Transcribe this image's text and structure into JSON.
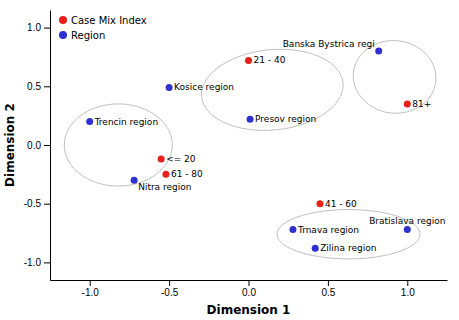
{
  "chart_data": {
    "type": "scatter",
    "xlabel": "Dimension 1",
    "ylabel": "Dimension 2",
    "xlim": [
      -1.25,
      1.25
    ],
    "ylim": [
      -1.15,
      1.15
    ],
    "xticks": [
      {
        "value": -1.0,
        "label": "-1.0"
      },
      -0.5,
      {
        "value": 0.0,
        "label": "0.0"
      },
      0.5,
      {
        "value": 1.0,
        "label": "1.0"
      }
    ],
    "yticks": [
      {
        "value": -1.0,
        "label": "-1.0"
      },
      -0.5,
      {
        "value": 0.0,
        "label": "0.0"
      },
      0.5,
      {
        "value": 1.0,
        "label": "1.0"
      }
    ],
    "grid": false,
    "legend": "upper left",
    "series": [
      {
        "name": "Case Mix Index",
        "color": "#e8201a",
        "marker": "circle",
        "x": [
          0.0,
          1.0,
          -0.55,
          -0.52,
          0.45
        ],
        "values": [
          0.72,
          0.35,
          -0.12,
          -0.25,
          -0.5
        ],
        "point_labels": [
          "21 - 40",
          "81+",
          "<= 20",
          "61 - 80",
          "41 - 60"
        ]
      },
      {
        "name": "Region",
        "color": "#3030d0",
        "marker": "circle",
        "x": [
          -0.5,
          0.01,
          0.82,
          -1.0,
          -0.72,
          0.28,
          1.0,
          0.42
        ],
        "values": [
          0.49,
          0.22,
          0.8,
          0.2,
          -0.3,
          -0.72,
          -0.72,
          -0.88
        ],
        "point_labels": [
          "Kosice region",
          "Presov region",
          "Banska Bystrica regi",
          "Trencin region",
          "Nitra region",
          "Trnava region",
          "Bratislava region",
          "Zilina region"
        ]
      }
    ],
    "ellipses": [
      {
        "cx": 0.15,
        "cy": 0.47,
        "width": 0.9,
        "height": 0.68,
        "angle": 12,
        "color": "#c0c0c0"
      },
      {
        "cx": 0.92,
        "cy": 0.58,
        "width": 0.52,
        "height": 0.62,
        "angle": 5,
        "color": "#c0c0c0"
      },
      {
        "cx": -0.82,
        "cy": 0.0,
        "width": 0.68,
        "height": 0.7,
        "angle": 0,
        "color": "#c0c0c0"
      },
      {
        "cx": 0.63,
        "cy": -0.76,
        "width": 0.9,
        "height": 0.42,
        "angle": 0,
        "color": "#c0c0c0"
      }
    ]
  }
}
